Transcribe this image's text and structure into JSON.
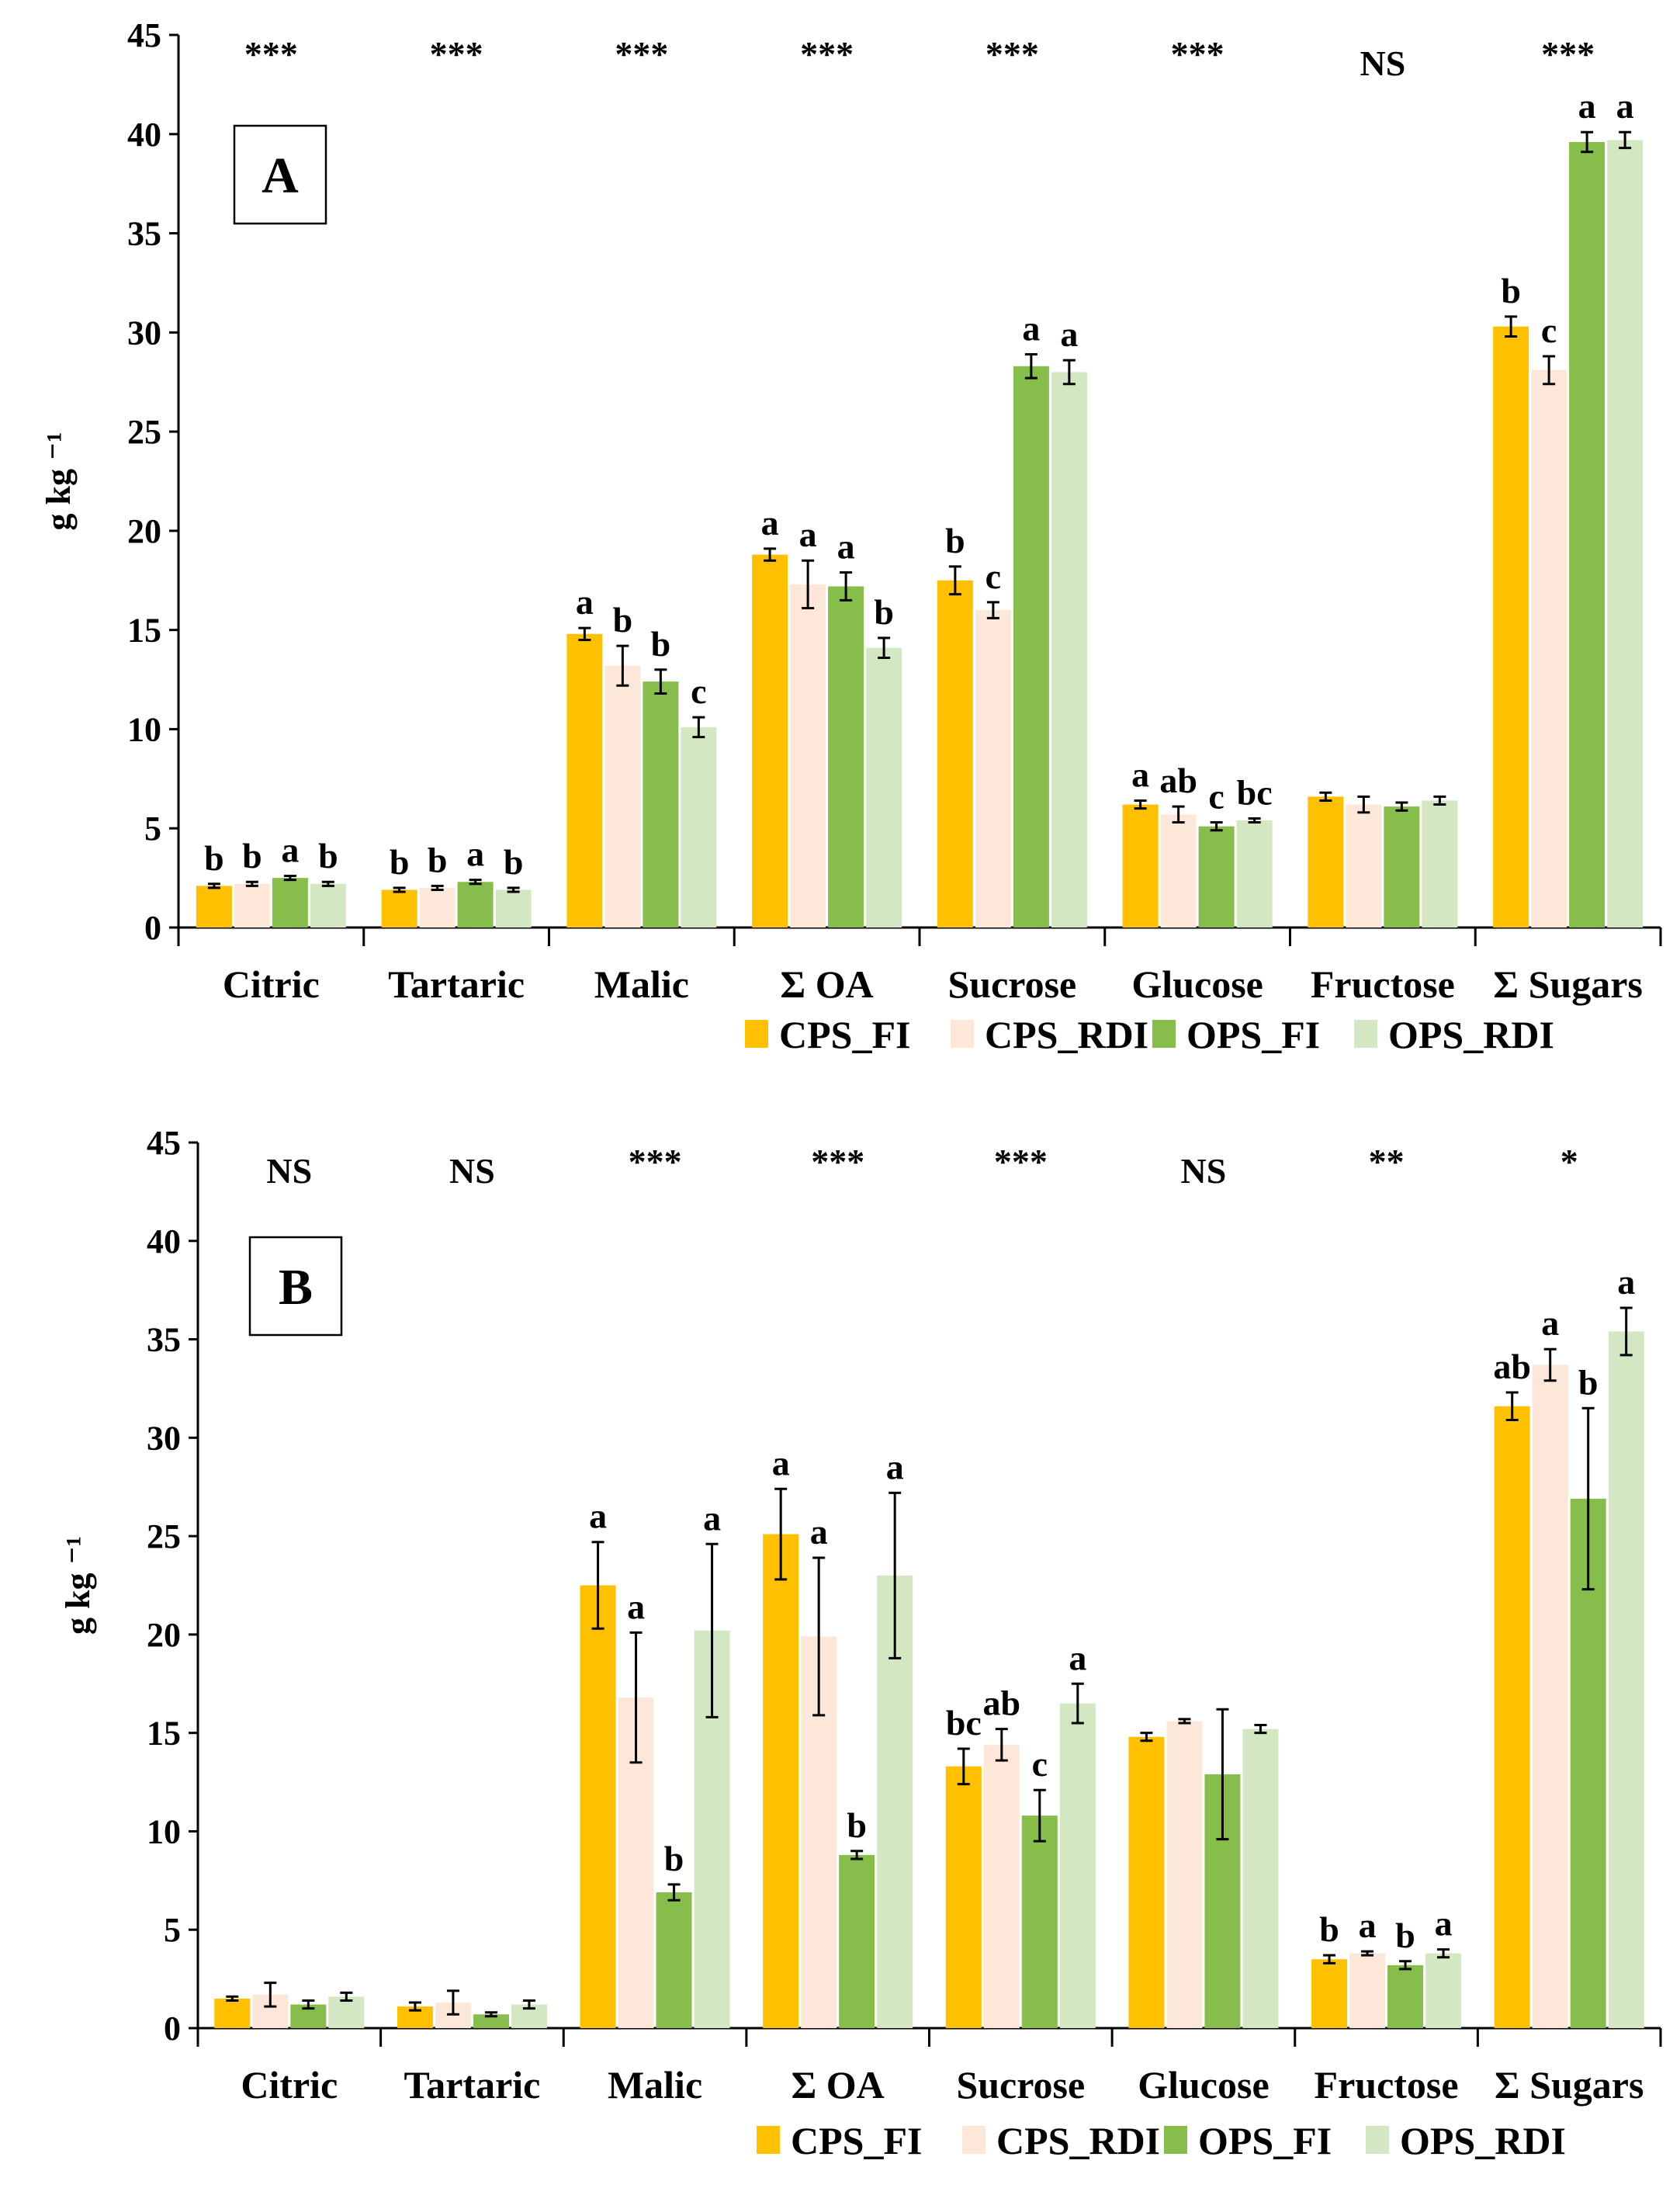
{
  "colors": {
    "CPS_FI": "#ffc000",
    "CPS_RDI": "#fde7d8",
    "OPS_FI": "#86bd4b",
    "OPS_RDI": "#d3e7c2"
  },
  "chart_data": [
    {
      "type": "bar",
      "panel_label": "A",
      "ylabel": "g kg ⁻¹",
      "ylim": [
        0,
        45
      ],
      "yticks": [
        "0",
        "5",
        "10",
        "15",
        "20",
        "25",
        "30",
        "35",
        "40",
        "45"
      ],
      "categories": [
        "Citric",
        "Tartaric",
        "Malic",
        "Σ OA",
        "Sucrose",
        "Glucose",
        "Fructose",
        "Σ Sugars"
      ],
      "significance": [
        "***",
        "***",
        "***",
        "***",
        "***",
        "***",
        "NS",
        "***"
      ],
      "series": [
        {
          "name": "CPS_FI",
          "values": [
            2.1,
            1.9,
            14.8,
            18.8,
            17.5,
            6.2,
            6.6,
            30.3
          ],
          "errors": [
            0.1,
            0.1,
            0.3,
            0.3,
            0.7,
            0.2,
            0.2,
            0.5
          ],
          "letters": [
            "b",
            "b",
            "a",
            "a",
            "b",
            "a",
            "",
            "b"
          ]
        },
        {
          "name": "CPS_RDI",
          "values": [
            2.2,
            2.0,
            13.2,
            17.3,
            16.0,
            5.7,
            6.2,
            28.1
          ],
          "errors": [
            0.1,
            0.1,
            1.0,
            1.2,
            0.4,
            0.4,
            0.4,
            0.7
          ],
          "letters": [
            "b",
            "b",
            "b",
            "a",
            "c",
            "ab",
            "",
            "c"
          ]
        },
        {
          "name": "OPS_FI",
          "values": [
            2.5,
            2.3,
            12.4,
            17.2,
            28.3,
            5.1,
            6.1,
            39.6
          ],
          "errors": [
            0.1,
            0.1,
            0.6,
            0.7,
            0.6,
            0.2,
            0.2,
            0.5
          ],
          "letters": [
            "a",
            "a",
            "b",
            "a",
            "a",
            "c",
            "",
            "a"
          ]
        },
        {
          "name": "OPS_RDI",
          "values": [
            2.2,
            1.9,
            10.1,
            14.1,
            28.0,
            5.4,
            6.4,
            39.7
          ],
          "errors": [
            0.1,
            0.1,
            0.5,
            0.5,
            0.6,
            0.1,
            0.2,
            0.4
          ],
          "letters": [
            "b",
            "b",
            "c",
            "b",
            "a",
            "bc",
            "",
            "a"
          ]
        }
      ]
    },
    {
      "type": "bar",
      "panel_label": "B",
      "ylabel": "g kg ⁻¹",
      "ylim": [
        0,
        45
      ],
      "yticks": [
        "0",
        "5",
        "10",
        "15",
        "20",
        "25",
        "30",
        "35",
        "40",
        "45"
      ],
      "categories": [
        "Citric",
        "Tartaric",
        "Malic",
        "Σ OA",
        "Sucrose",
        "Glucose",
        "Fructose",
        "Σ Sugars"
      ],
      "significance": [
        "NS",
        "NS",
        "***",
        "***",
        "***",
        "NS",
        "**",
        "*"
      ],
      "series": [
        {
          "name": "CPS_FI",
          "values": [
            1.5,
            1.1,
            22.5,
            25.1,
            13.3,
            14.8,
            3.5,
            31.6
          ],
          "errors": [
            0.1,
            0.2,
            2.2,
            2.3,
            0.9,
            0.2,
            0.2,
            0.7
          ],
          "letters": [
            "",
            "",
            "a",
            "a",
            "bc",
            "",
            "b",
            "ab"
          ]
        },
        {
          "name": "CPS_RDI",
          "values": [
            1.7,
            1.3,
            16.8,
            19.9,
            14.4,
            15.6,
            3.8,
            33.7
          ],
          "errors": [
            0.6,
            0.6,
            3.3,
            4.0,
            0.8,
            0.1,
            0.1,
            0.8
          ],
          "letters": [
            "",
            "",
            "a",
            "a",
            "ab",
            "",
            "a",
            "a"
          ]
        },
        {
          "name": "OPS_FI",
          "values": [
            1.2,
            0.7,
            6.9,
            8.8,
            10.8,
            12.9,
            3.2,
            26.9
          ],
          "errors": [
            0.2,
            0.1,
            0.4,
            0.2,
            1.3,
            3.3,
            0.2,
            4.6
          ],
          "letters": [
            "",
            "",
            "b",
            "b",
            "c",
            "",
            "b",
            "b"
          ]
        },
        {
          "name": "OPS_RDI",
          "values": [
            1.6,
            1.2,
            20.2,
            23.0,
            16.5,
            15.2,
            3.8,
            35.4
          ],
          "errors": [
            0.2,
            0.2,
            4.4,
            4.2,
            1.0,
            0.2,
            0.2,
            1.2
          ],
          "letters": [
            "",
            "",
            "a",
            "a",
            "a",
            "",
            "a",
            "a"
          ]
        }
      ]
    }
  ]
}
